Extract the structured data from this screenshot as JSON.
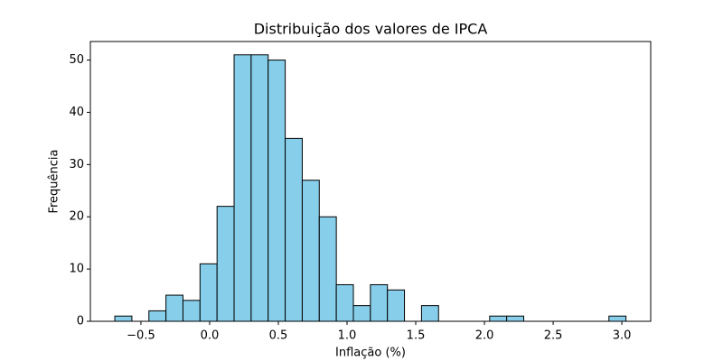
{
  "chart_data": {
    "type": "histogram",
    "title": "Distribuição dos valores de IPCA",
    "x_label": "Inflação (%)",
    "y_label": "Frequência",
    "bins": [
      -0.69,
      -0.566,
      -0.442,
      -0.318,
      -0.194,
      -0.07,
      0.054,
      0.178,
      0.302,
      0.426,
      0.55,
      0.674,
      0.798,
      0.922,
      1.046,
      1.17,
      1.294,
      1.418,
      1.542,
      1.666,
      1.79,
      1.914,
      2.038,
      2.162,
      2.286,
      2.41,
      2.534,
      2.658,
      2.782,
      2.906,
      3.03
    ],
    "values": [
      1,
      0,
      2,
      5,
      4,
      11,
      22,
      51,
      51,
      50,
      35,
      27,
      20,
      7,
      3,
      7,
      6,
      0,
      3,
      0,
      0,
      0,
      1,
      1,
      0,
      0,
      0,
      0,
      0,
      1
    ],
    "color": "#87ceeb",
    "edgecolor": "#000000",
    "xlim": [
      -0.868,
      3.21
    ],
    "ylim": [
      0,
      53.55
    ],
    "xticks": [
      {
        "value": -0.5,
        "label": "−0.5"
      },
      {
        "value": 0,
        "label": "0.0"
      },
      {
        "value": 0.5,
        "label": "0.5"
      },
      {
        "value": 1,
        "label": "1.0"
      },
      {
        "value": 1.5,
        "label": "1.5"
      },
      {
        "value": 2,
        "label": "2.0"
      },
      {
        "value": 2.5,
        "label": "2.5"
      },
      {
        "value": 3,
        "label": "3.0"
      }
    ],
    "yticks": [
      0,
      10,
      20,
      30,
      40,
      50
    ],
    "grid": false
  }
}
